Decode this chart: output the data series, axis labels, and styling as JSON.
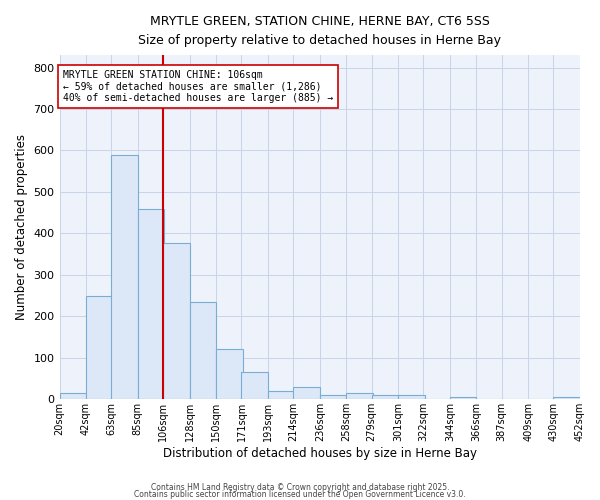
{
  "title_line1": "MRYTLE GREEN, STATION CHINE, HERNE BAY, CT6 5SS",
  "title_line2": "Size of property relative to detached houses in Herne Bay",
  "xlabel": "Distribution of detached houses by size in Herne Bay",
  "ylabel": "Number of detached properties",
  "bar_left_edges": [
    20,
    42,
    63,
    85,
    106,
    128,
    150,
    171,
    193,
    214,
    236,
    258,
    279,
    301,
    322,
    344,
    366,
    387,
    409,
    430
  ],
  "bar_heights": [
    15,
    250,
    590,
    458,
    378,
    235,
    122,
    65,
    20,
    30,
    10,
    15,
    10,
    10,
    0,
    5,
    0,
    0,
    0,
    5
  ],
  "bin_width": 22,
  "bar_facecolor": "#dce8f8",
  "bar_edgecolor": "#7aadd4",
  "gridcolor": "#c8d4e8",
  "bg_color": "#edf2fb",
  "fig_bg_color": "#ffffff",
  "vline_x": 106,
  "vline_color": "#cc0000",
  "annotation_text": "MRYTLE GREEN STATION CHINE: 106sqm\n← 59% of detached houses are smaller (1,286)\n40% of semi-detached houses are larger (885) →",
  "annotation_box_color": "#ffffff",
  "annotation_border_color": "#cc0000",
  "ylim": [
    0,
    830
  ],
  "yticks": [
    0,
    100,
    200,
    300,
    400,
    500,
    600,
    700,
    800
  ],
  "xtick_labels": [
    "20sqm",
    "42sqm",
    "63sqm",
    "85sqm",
    "106sqm",
    "128sqm",
    "150sqm",
    "171sqm",
    "193sqm",
    "214sqm",
    "236sqm",
    "258sqm",
    "279sqm",
    "301sqm",
    "322sqm",
    "344sqm",
    "366sqm",
    "387sqm",
    "409sqm",
    "430sqm",
    "452sqm"
  ],
  "footer_line1": "Contains HM Land Registry data © Crown copyright and database right 2025.",
  "footer_line2": "Contains public sector information licensed under the Open Government Licence v3.0."
}
